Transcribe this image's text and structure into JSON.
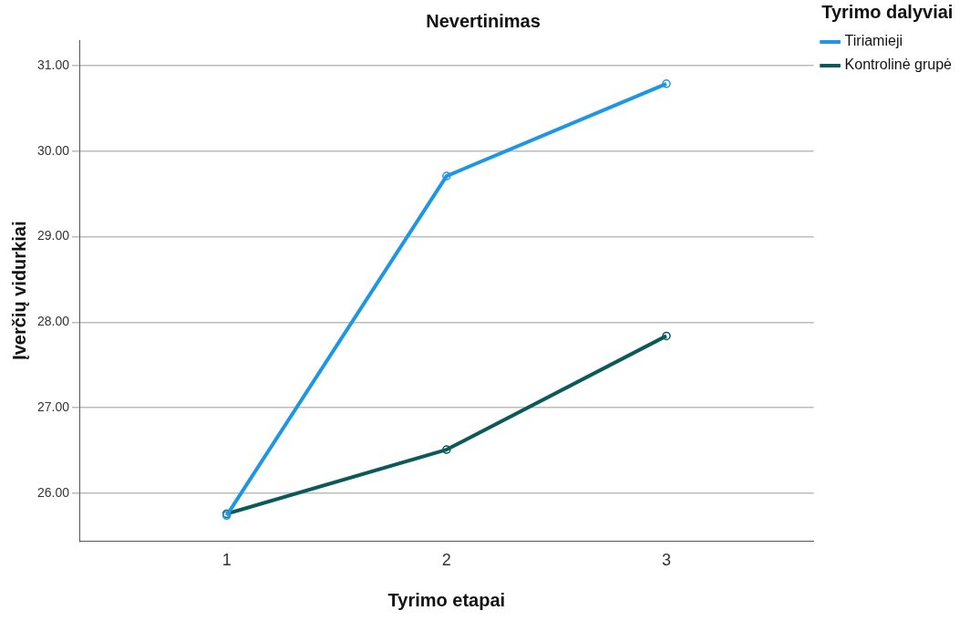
{
  "chart_data": {
    "type": "line",
    "title": "Nevertinimas",
    "xlabel": "Tyrimo etapai",
    "ylabel": "Įverčių vidurkiai",
    "legend_title": "Tyrimo dalyviai",
    "x": [
      1,
      2,
      3
    ],
    "xlim": [
      0.33,
      3.67
    ],
    "xticks": [
      1,
      2,
      3
    ],
    "ylim": [
      25.44,
      31.3
    ],
    "yticks": [
      {
        "value": 26,
        "label": "26.00"
      },
      {
        "value": 27,
        "label": "27.00"
      },
      {
        "value": 28,
        "label": "28.00"
      },
      {
        "value": 29,
        "label": "29.00"
      },
      {
        "value": 30,
        "label": "30.00"
      },
      {
        "value": 31,
        "label": "31.00"
      }
    ],
    "series": [
      {
        "name": "Tiriamieji",
        "color": "#1e96e6",
        "values": [
          25.74,
          29.71,
          30.79
        ]
      },
      {
        "name": "Kontrolinė grupė",
        "color": "#0a5a5a",
        "values": [
          25.76,
          26.51,
          27.84
        ]
      }
    ],
    "grid": "y",
    "legend": "right",
    "marker": "circle",
    "line_style": "solid"
  }
}
